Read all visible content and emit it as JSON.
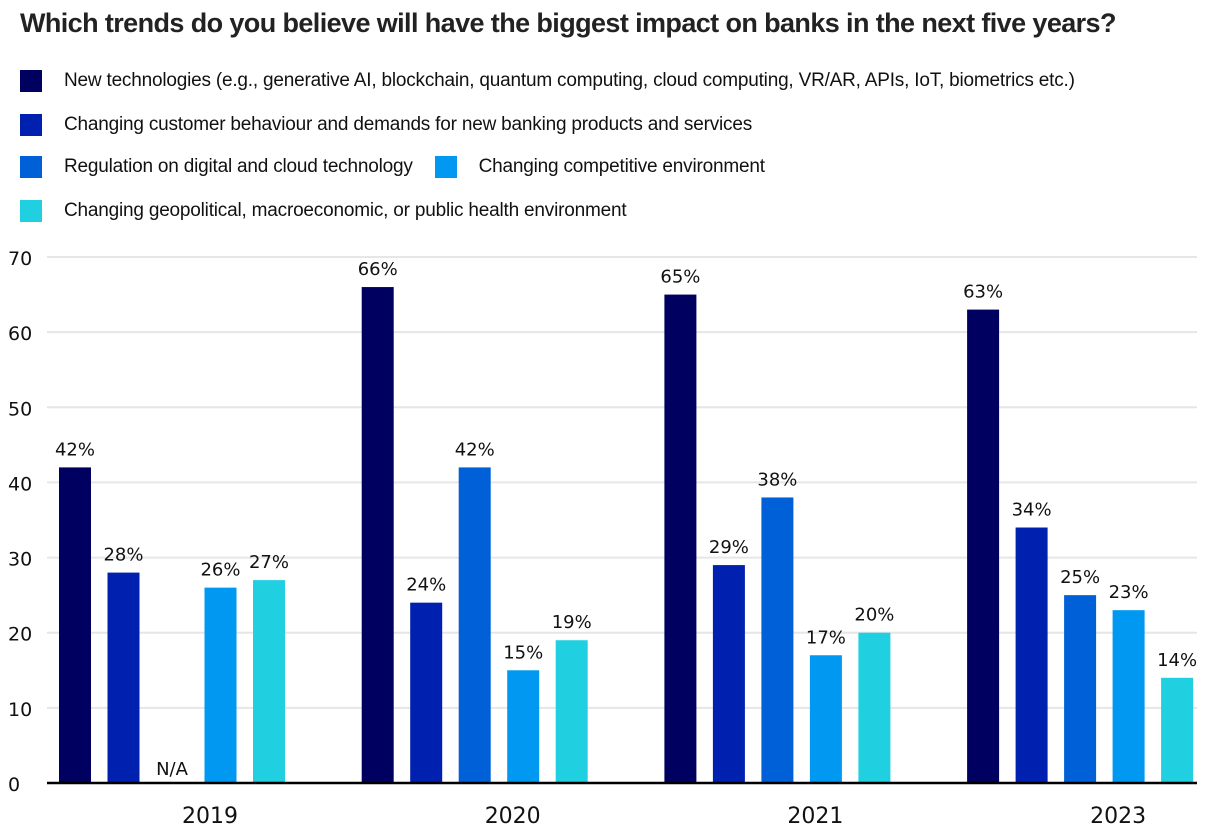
{
  "chart_data": {
    "type": "bar",
    "title": "Which trends do you believe will have the biggest impact on banks in the next five years?",
    "xlabel": "",
    "ylabel": "",
    "ylim": [
      0,
      70
    ],
    "yticks": [
      0,
      10,
      20,
      30,
      40,
      50,
      60,
      70
    ],
    "grid": true,
    "legend_position": "top-left",
    "categories": [
      "2019",
      "2020",
      "2021",
      "2023"
    ],
    "series": [
      {
        "name": "New technologies (e.g., generative AI, blockchain, quantum computing, cloud computing, VR/AR, APIs, IoT, biometrics etc.)",
        "color": "#000060",
        "values": [
          42,
          66,
          65,
          63
        ],
        "labels": [
          "42%",
          "66%",
          "65%",
          "63%"
        ]
      },
      {
        "name": "Changing customer behaviour and demands for new banking products and services",
        "color": "#0020B0",
        "values": [
          28,
          24,
          29,
          34
        ],
        "labels": [
          "28%",
          "24%",
          "29%",
          "34%"
        ]
      },
      {
        "name": "Regulation on digital and cloud technology",
        "color": "#0060D8",
        "values": [
          null,
          42,
          38,
          25
        ],
        "labels": [
          "N/A",
          "42%",
          "38%",
          "25%"
        ]
      },
      {
        "name": "Changing competitive environment",
        "color": "#0098F0",
        "values": [
          26,
          15,
          17,
          23
        ],
        "labels": [
          "26%",
          "15%",
          "17%",
          "23%"
        ]
      },
      {
        "name": "Changing geopolitical, macroeconomic, or public health environment",
        "color": "#20D0E0",
        "values": [
          27,
          19,
          20,
          14
        ],
        "labels": [
          "27%",
          "19%",
          "20%",
          "14%"
        ]
      }
    ]
  }
}
